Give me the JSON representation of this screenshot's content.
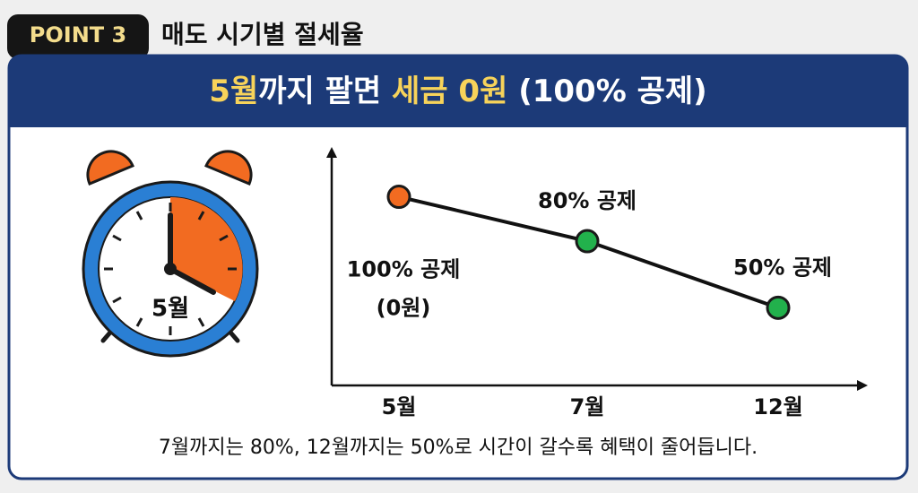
{
  "header": {
    "badge": "POINT 3",
    "title": "매도 시기별 절세율"
  },
  "banner": [
    "5월",
    "까지 팔면 ",
    "세금 0원",
    " (100% 공제)"
  ],
  "clock_label": "5월",
  "footer": "7월까지는 80%, 12월까지는 50%로 시간이 갈수록 혜택이 줄어듭니다.",
  "chart_data": {
    "type": "line",
    "categories": [
      "5월",
      "7월",
      "12월"
    ],
    "values": [
      100,
      80,
      50
    ],
    "value_labels": [
      "100% 공제",
      "80% 공제",
      "50% 공제"
    ],
    "annotations": [
      "(0원)"
    ],
    "line_color": "#111111",
    "point_colors": [
      "#f26b21",
      "#22b14c",
      "#22b14c"
    ],
    "ylim": [
      15,
      120
    ]
  }
}
